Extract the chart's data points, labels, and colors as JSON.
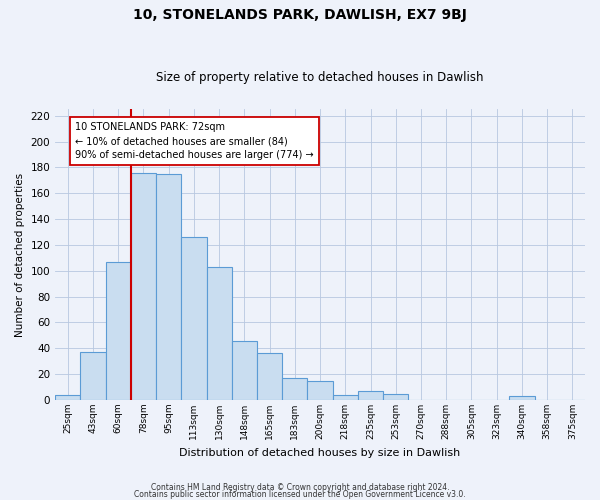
{
  "title": "10, STONELANDS PARK, DAWLISH, EX7 9BJ",
  "subtitle": "Size of property relative to detached houses in Dawlish",
  "xlabel": "Distribution of detached houses by size in Dawlish",
  "ylabel": "Number of detached properties",
  "bar_labels": [
    "25sqm",
    "43sqm",
    "60sqm",
    "78sqm",
    "95sqm",
    "113sqm",
    "130sqm",
    "148sqm",
    "165sqm",
    "183sqm",
    "200sqm",
    "218sqm",
    "235sqm",
    "253sqm",
    "270sqm",
    "288sqm",
    "305sqm",
    "323sqm",
    "340sqm",
    "358sqm",
    "375sqm"
  ],
  "bar_values": [
    4,
    37,
    107,
    176,
    175,
    126,
    103,
    46,
    36,
    17,
    15,
    4,
    7,
    5,
    0,
    0,
    0,
    0,
    3,
    0,
    0
  ],
  "bar_color": "#c9ddf0",
  "bar_edge_color": "#5b9bd5",
  "ylim": [
    0,
    225
  ],
  "yticks": [
    0,
    20,
    40,
    60,
    80,
    100,
    120,
    140,
    160,
    180,
    200,
    220
  ],
  "red_line_index": 3,
  "annotation_title": "10 STONELANDS PARK: 72sqm",
  "annotation_line1": "← 10% of detached houses are smaller (84)",
  "annotation_line2": "90% of semi-detached houses are larger (774) →",
  "footer_line1": "Contains HM Land Registry data © Crown copyright and database right 2024.",
  "footer_line2": "Contains public sector information licensed under the Open Government Licence v3.0.",
  "background_color": "#eef2fa",
  "plot_bg_color": "#eef2fa",
  "grid_color": "#b8c8e0"
}
